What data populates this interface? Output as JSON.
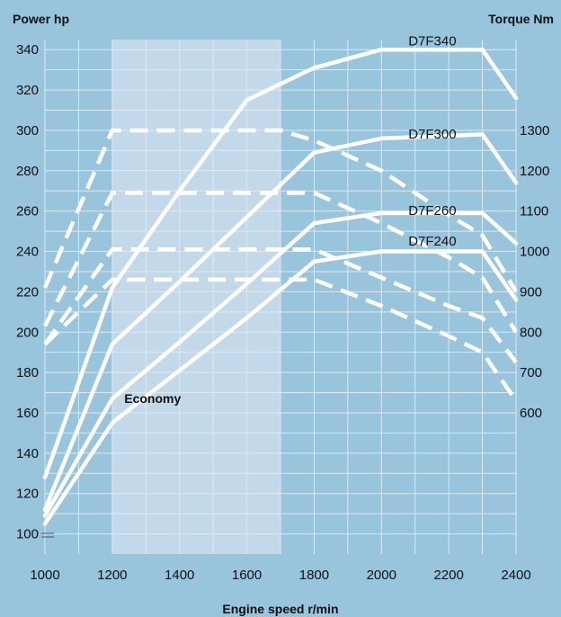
{
  "chart_data": {
    "type": "line",
    "ylabel_left": "Power hp",
    "ylabel_right": "Torque Nm",
    "xlabel": "Engine speed r/min",
    "xlim": [
      1000,
      2400
    ],
    "xticks": [
      1000,
      1200,
      1400,
      1600,
      1800,
      2000,
      2200,
      2400
    ],
    "ylim_left": [
      90,
      345
    ],
    "yticks_left": [
      100,
      120,
      140,
      160,
      180,
      200,
      220,
      240,
      260,
      280,
      300,
      320,
      340
    ],
    "yticks_right": [
      {
        "label": "1300",
        "at_left": 300
      },
      {
        "label": "1200",
        "at_left": 280
      },
      {
        "label": "1100",
        "at_left": 260
      },
      {
        "label": "1000",
        "at_left": 240
      },
      {
        "label": "900",
        "at_left": 220
      },
      {
        "label": "800",
        "at_left": 200
      },
      {
        "label": "700",
        "at_left": 180
      },
      {
        "label": "600",
        "at_left": 160
      }
    ],
    "grid": true,
    "annotations": [
      {
        "text": "Economy",
        "type": "band",
        "x_range": [
          1200,
          1700
        ],
        "label_x": 1320,
        "label_y": 165
      }
    ],
    "series": [
      {
        "name": "D7F340",
        "label_pos": [
          2080,
          342
        ],
        "power": [
          [
            1000,
            128
          ],
          [
            1200,
            222
          ],
          [
            1400,
            270
          ],
          [
            1600,
            315
          ],
          [
            1800,
            331
          ],
          [
            2000,
            340
          ],
          [
            2300,
            340
          ],
          [
            2400,
            316
          ]
        ],
        "torque_left_scale": [
          [
            1000,
            222
          ],
          [
            1200,
            300
          ],
          [
            1700,
            300
          ],
          [
            1800,
            295
          ],
          [
            2000,
            280
          ],
          [
            2200,
            258
          ],
          [
            2300,
            248
          ],
          [
            2400,
            220
          ]
        ]
      },
      {
        "name": "D7F300",
        "label_pos": [
          2080,
          296
        ],
        "power": [
          [
            1000,
            112
          ],
          [
            1200,
            194
          ],
          [
            1400,
            225
          ],
          [
            1600,
            257
          ],
          [
            1800,
            289
          ],
          [
            2000,
            296
          ],
          [
            2300,
            298
          ],
          [
            2400,
            274
          ]
        ],
        "torque_left_scale": [
          [
            1000,
            203
          ],
          [
            1200,
            269
          ],
          [
            1800,
            269
          ],
          [
            2000,
            254
          ],
          [
            2200,
            237
          ],
          [
            2300,
            227
          ],
          [
            2400,
            200
          ]
        ]
      },
      {
        "name": "D7F260",
        "label_pos": [
          2080,
          258
        ],
        "power": [
          [
            1000,
            109
          ],
          [
            1200,
            167
          ],
          [
            1400,
            195
          ],
          [
            1600,
            224
          ],
          [
            1800,
            254
          ],
          [
            2000,
            259
          ],
          [
            2300,
            259
          ],
          [
            2400,
            244
          ]
        ],
        "torque_left_scale": [
          [
            1000,
            194
          ],
          [
            1200,
            241
          ],
          [
            1800,
            241
          ],
          [
            2000,
            227
          ],
          [
            2200,
            213
          ],
          [
            2300,
            207
          ],
          [
            2400,
            185
          ]
        ]
      },
      {
        "name": "D7F240",
        "label_pos": [
          2080,
          243
        ],
        "power": [
          [
            1000,
            105
          ],
          [
            1200,
            155
          ],
          [
            1400,
            181
          ],
          [
            1600,
            207
          ],
          [
            1800,
            235
          ],
          [
            2000,
            240
          ],
          [
            2300,
            240
          ],
          [
            2400,
            216
          ]
        ],
        "torque_left_scale": [
          [
            1000,
            194
          ],
          [
            1200,
            226
          ],
          [
            1800,
            226
          ],
          [
            2000,
            213
          ],
          [
            2200,
            198
          ],
          [
            2300,
            190
          ],
          [
            2400,
            166
          ]
        ]
      }
    ]
  }
}
